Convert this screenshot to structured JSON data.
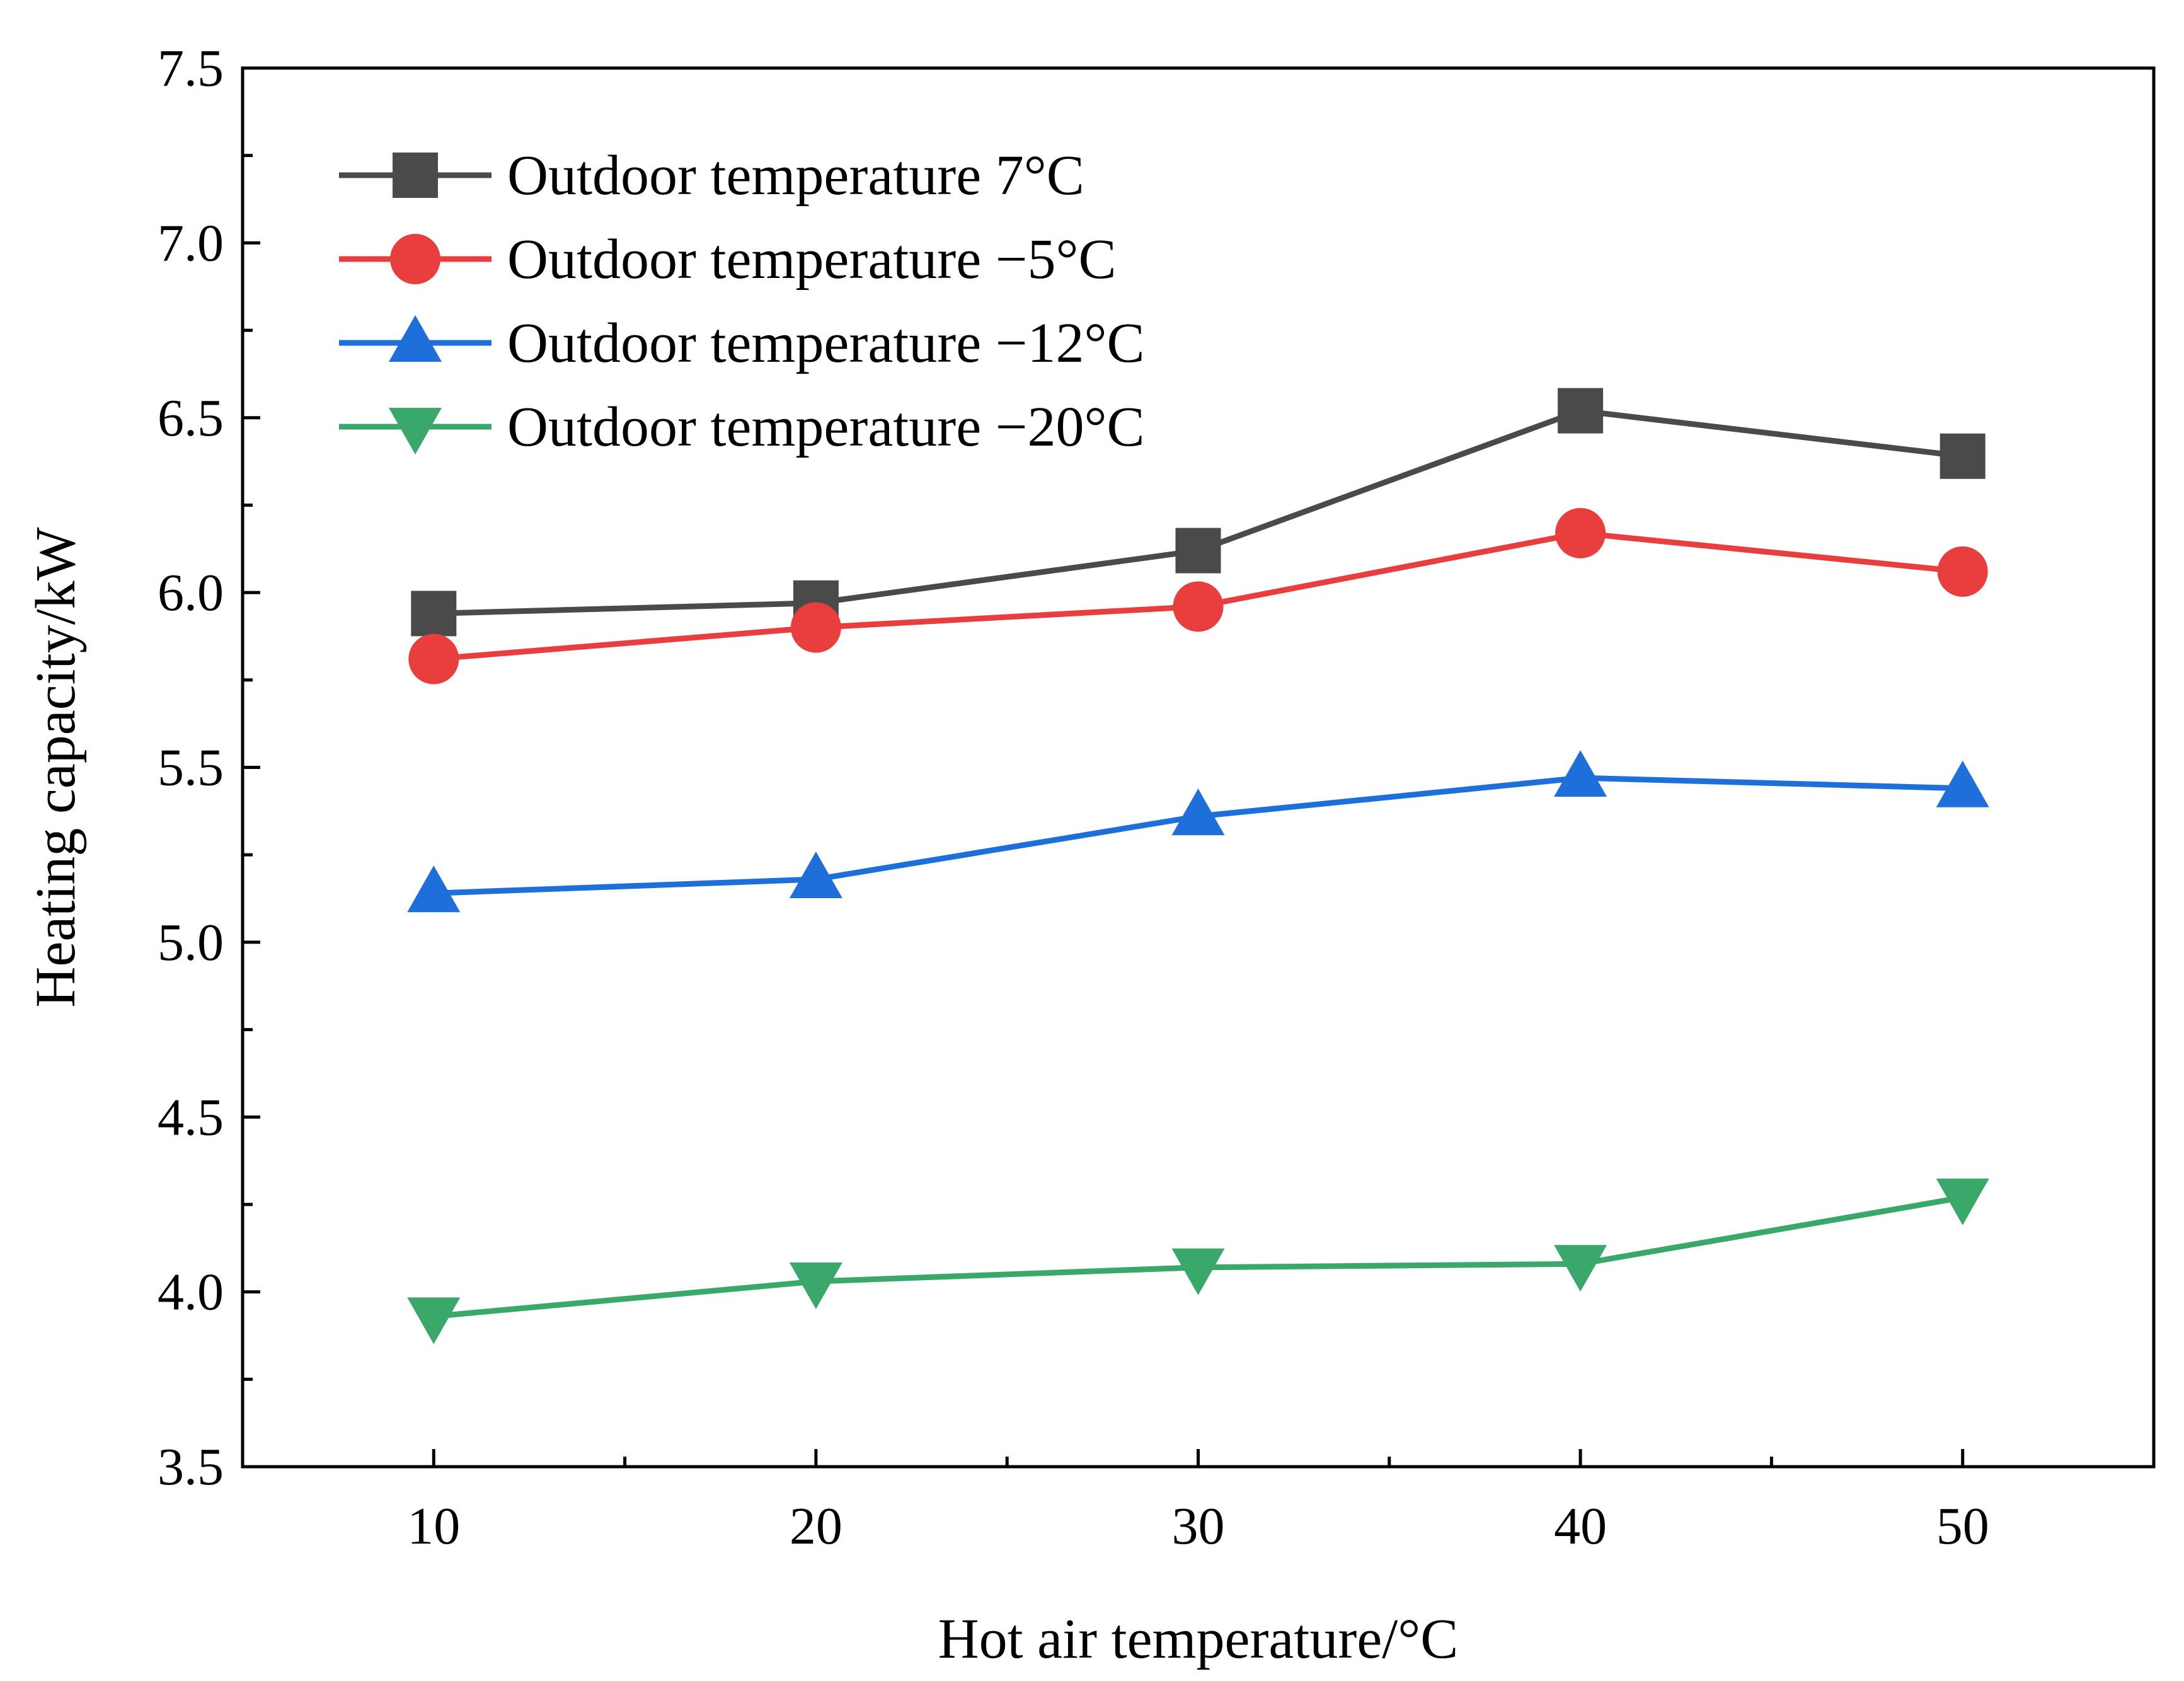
{
  "chart_data": {
    "type": "line",
    "title": "",
    "xlabel": "Hot air temperature/°C",
    "ylabel": "Heating capacity/kW",
    "x": [
      10,
      20,
      30,
      40,
      50
    ],
    "xlim": [
      5,
      55
    ],
    "ylim": [
      3.5,
      7.5
    ],
    "xticks": [
      10,
      20,
      30,
      40,
      50
    ],
    "xtick_labels": [
      "10",
      "20",
      "30",
      "40",
      "50"
    ],
    "yticks": [
      3.5,
      4.0,
      4.5,
      5.0,
      5.5,
      6.0,
      6.5,
      7.0,
      7.5
    ],
    "ytick_labels": [
      "3.5",
      "4.0",
      "4.5",
      "5.0",
      "5.5",
      "6.0",
      "6.5",
      "7.0",
      "7.5"
    ],
    "grid": false,
    "legend_position": "top-left",
    "series": [
      {
        "name": "Outdoor temperature 7°C",
        "color": "#4a4a4a",
        "marker": "square",
        "values": [
          5.94,
          5.97,
          6.12,
          6.52,
          6.39
        ]
      },
      {
        "name": "Outdoor temperature −5°C",
        "color": "#e83e3e",
        "marker": "circle",
        "values": [
          5.81,
          5.9,
          5.96,
          6.17,
          6.06
        ]
      },
      {
        "name": "Outdoor temperature −12°C",
        "color": "#1e6fd9",
        "marker": "triangle-up",
        "values": [
          5.14,
          5.18,
          5.36,
          5.47,
          5.44
        ]
      },
      {
        "name": "Outdoor temperature −20°C",
        "color": "#3aa86b",
        "marker": "triangle-down",
        "values": [
          3.93,
          4.03,
          4.07,
          4.08,
          4.27
        ]
      }
    ]
  }
}
